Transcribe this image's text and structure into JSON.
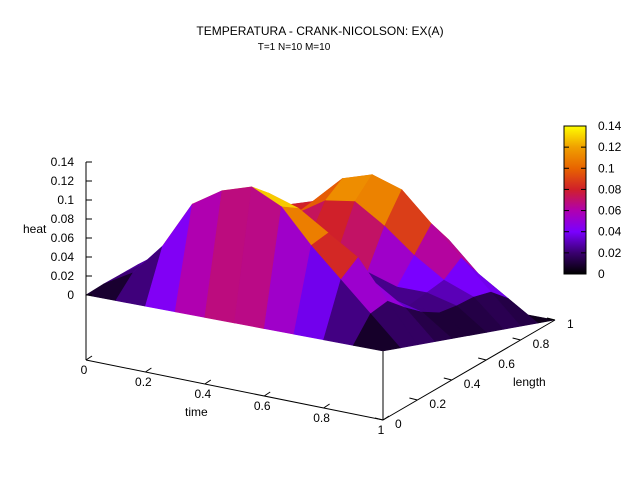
{
  "chart_data": {
    "type": "surface",
    "title": "TEMPERATURA - CRANK-NICOLSON: EX(A)",
    "subtitle": "T=1 N=10 M=10",
    "xlabel": "time",
    "ylabel": "length",
    "zlabel": "heat",
    "xlim": [
      0,
      1
    ],
    "ylim": [
      0,
      1
    ],
    "zlim": [
      0,
      0.14
    ],
    "x_ticks": [
      "0",
      "0.2",
      "0.4",
      "0.6",
      "0.8",
      "1"
    ],
    "y_ticks": [
      "0",
      "0.2",
      "0.4",
      "0.6",
      "0.8",
      "1"
    ],
    "z_ticks": [
      "0",
      "0.02",
      "0.04",
      "0.06",
      "0.08",
      "0.1",
      "0.12",
      "0.14"
    ],
    "colorbar": {
      "ticks": [
        "0",
        "0.02",
        "0.04",
        "0.06",
        "0.08",
        "0.1",
        "0.12",
        "0.14"
      ],
      "stops": [
        "#000000",
        "#3a0070",
        "#7a00ff",
        "#b000b0",
        "#d0202a",
        "#e86400",
        "#f0a000",
        "#ffff00"
      ]
    },
    "x": [
      0,
      0.1,
      0.2,
      0.3,
      0.4,
      0.5,
      0.6,
      0.7,
      0.8,
      0.9,
      1.0
    ],
    "y": [
      0,
      0.1,
      0.2,
      0.3,
      0.4,
      0.5,
      0.6,
      0.7,
      0.8,
      0.9,
      1.0
    ],
    "grid_note": "z[i][j]: i indexes time, j indexes length",
    "z": [
      [
        0.0,
        0.008,
        0.015,
        0.022,
        0.028,
        0.032,
        0.03,
        0.025,
        0.018,
        0.01,
        0.0
      ],
      [
        0.0,
        0.026,
        0.035,
        0.03,
        0.028,
        0.03,
        0.034,
        0.04,
        0.05,
        0.04,
        0.0
      ],
      [
        0.0,
        0.06,
        0.045,
        0.02,
        0.012,
        0.02,
        0.04,
        0.07,
        0.08,
        0.055,
        0.0
      ],
      [
        0.0,
        0.11,
        0.08,
        0.04,
        0.008,
        0.015,
        0.05,
        0.08,
        0.09,
        0.07,
        0.0
      ],
      [
        0.0,
        0.13,
        0.12,
        0.07,
        0.01,
        0.008,
        0.06,
        0.1,
        0.12,
        0.08,
        0.0
      ],
      [
        0.0,
        0.14,
        0.13,
        0.08,
        0.018,
        0.006,
        0.055,
        0.105,
        0.13,
        0.09,
        0.0
      ],
      [
        0.0,
        0.125,
        0.12,
        0.095,
        0.03,
        0.01,
        0.04,
        0.085,
        0.12,
        0.09,
        0.0
      ],
      [
        0.0,
        0.09,
        0.1,
        0.07,
        0.03,
        0.015,
        0.03,
        0.06,
        0.09,
        0.07,
        0.0
      ],
      [
        0.0,
        0.06,
        0.08,
        0.05,
        0.03,
        0.02,
        0.03,
        0.04,
        0.06,
        0.04,
        0.0
      ],
      [
        0.0,
        0.03,
        0.04,
        0.03,
        0.022,
        0.018,
        0.022,
        0.028,
        0.03,
        0.02,
        0.0
      ],
      [
        0.0,
        0.0,
        0.0,
        0.0,
        0.0,
        0.0,
        0.0,
        0.0,
        0.0,
        0.0,
        0.0
      ]
    ]
  }
}
